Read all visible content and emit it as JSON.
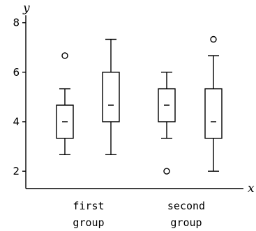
{
  "chart_data": {
    "type": "boxplot",
    "xlabel": "x",
    "ylabel": "y",
    "ylim": [
      1.3,
      8.3
    ],
    "yticks": [
      2,
      4,
      6,
      8
    ],
    "grid": false,
    "categories": [
      {
        "lines": [
          "first",
          "group"
        ]
      },
      {
        "lines": [
          "second",
          "group"
        ]
      }
    ],
    "boxes": [
      {
        "group": 0,
        "whisker_low": 2.67,
        "q1": 3.33,
        "median": 4.0,
        "q3": 4.67,
        "whisker_high": 5.33,
        "outliers": [
          6.67
        ]
      },
      {
        "group": 0,
        "whisker_low": 2.67,
        "q1": 4.0,
        "median": 4.67,
        "q3": 6.0,
        "whisker_high": 7.33,
        "outliers": []
      },
      {
        "group": 1,
        "whisker_low": 3.33,
        "q1": 4.0,
        "median": 4.67,
        "q3": 5.33,
        "whisker_high": 6.0,
        "outliers": [
          2.0
        ]
      },
      {
        "group": 1,
        "whisker_low": 2.0,
        "q1": 3.33,
        "median": 4.0,
        "q3": 5.33,
        "whisker_high": 6.67,
        "outliers": [
          7.33
        ]
      }
    ]
  }
}
